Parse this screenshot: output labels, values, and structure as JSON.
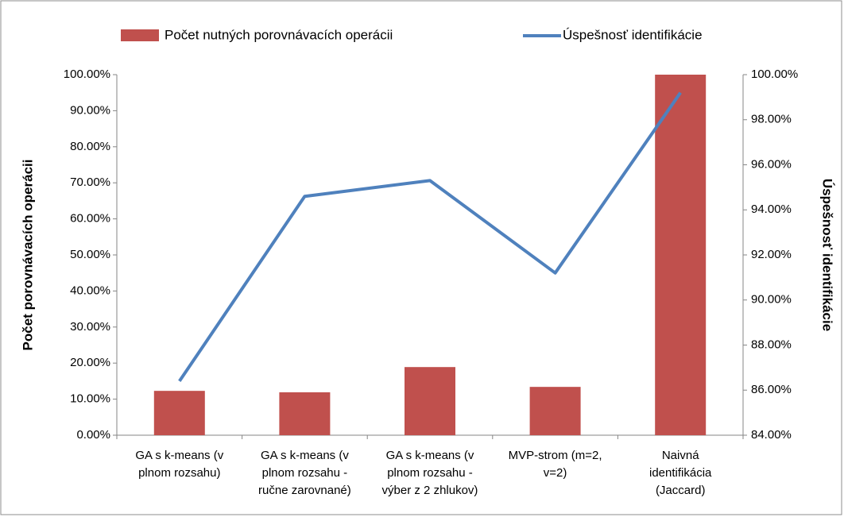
{
  "chart_data": {
    "type": "bar-line",
    "categories": [
      [
        "GA s k-means (v",
        "plnom rozsahu)"
      ],
      [
        "GA s k-means (v",
        "plnom rozsahu -",
        "ručne zarovnané)"
      ],
      [
        "GA s k-means (v",
        "plnom rozsahu -",
        "výber z 2 zhlukov)"
      ],
      [
        "MVP-strom (m=2,",
        "v=2)"
      ],
      [
        "Naivná",
        "identifikácia",
        "(Jaccard)"
      ]
    ],
    "series": [
      {
        "name": "Počet nutných porovnávacích operácii",
        "type": "bar",
        "color": "#c0504d",
        "values": [
          12.3,
          11.9,
          18.9,
          13.4,
          100
        ]
      },
      {
        "name": "Úspešnosť identifikácie",
        "type": "line",
        "axis": "y2",
        "color": "#4f81bd",
        "values": [
          86.4,
          94.6,
          95.3,
          91.2,
          99.2
        ]
      }
    ],
    "y_label": "Počet porovnávacích operácii",
    "y2_label": "Úspešnosť identifikácie",
    "ylim": [
      0,
      100
    ],
    "yticks": [
      {
        "value": 0,
        "label": "0.00%"
      },
      {
        "value": 10,
        "label": "10.00%"
      },
      {
        "value": 20,
        "label": "20.00%"
      },
      {
        "value": 30,
        "label": "30.00%"
      },
      {
        "value": 40,
        "label": "40.00%"
      },
      {
        "value": 50,
        "label": "50.00%"
      },
      {
        "value": 60,
        "label": "60.00%"
      },
      {
        "value": 70,
        "label": "70.00%"
      },
      {
        "value": 80,
        "label": "80.00%"
      },
      {
        "value": 90,
        "label": "90.00%"
      },
      {
        "value": 100,
        "label": "100.00%"
      }
    ],
    "y2lim": [
      84,
      100
    ],
    "y2ticks": [
      {
        "value": 84,
        "label": "84.00%"
      },
      {
        "value": 86,
        "label": "86.00%"
      },
      {
        "value": 88,
        "label": "88.00%"
      },
      {
        "value": 90,
        "label": "90.00%"
      },
      {
        "value": 92,
        "label": "92.00%"
      },
      {
        "value": 94,
        "label": "94.00%"
      },
      {
        "value": 96,
        "label": "96.00%"
      },
      {
        "value": 98,
        "label": "98.00%"
      },
      {
        "value": 100,
        "label": "100.00%"
      }
    ],
    "legend": "top"
  }
}
